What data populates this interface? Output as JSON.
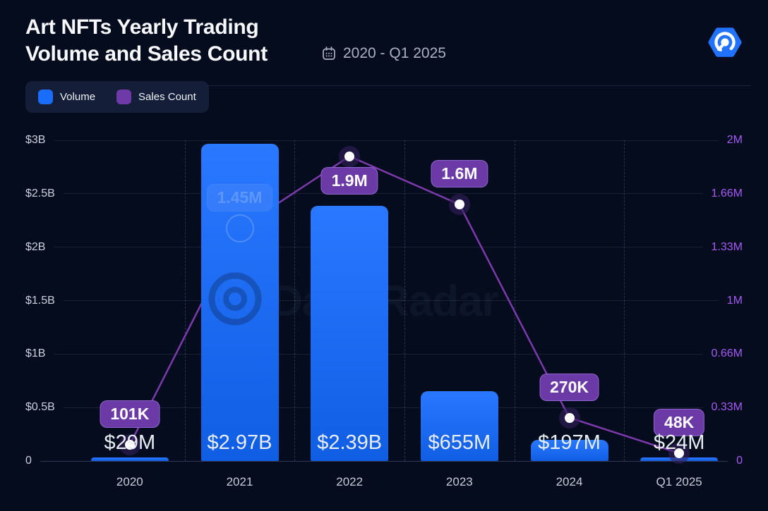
{
  "header": {
    "title_line1": "Art NFTs Yearly Trading",
    "title_line2": "Volume and Sales Count",
    "date_range": "2020 - Q1 2025"
  },
  "legend": {
    "items": [
      {
        "label": "Volume",
        "color": "#1a6dfb"
      },
      {
        "label": "Sales Count",
        "color": "#6d3aa8"
      }
    ]
  },
  "watermark": "DappRadar",
  "colors": {
    "background": "#050c1d",
    "bar_top": "#2a78ff",
    "bar_bottom": "#0f5ee4",
    "line": "#7c3aad",
    "right_axis_text": "#a55cf6",
    "badge_background": "#6b3aa6"
  },
  "chart_data": {
    "type": "bar+line combo",
    "title": "Art NFTs Yearly Trading Volume and Sales Count",
    "subtitle": "2020 - Q1 2025",
    "categories": [
      "2020",
      "2021",
      "2022",
      "2023",
      "2024",
      "Q1 2025"
    ],
    "series": [
      {
        "name": "Volume",
        "type": "bar",
        "axis": "left",
        "color": "#1a6dfb",
        "values": [
          29000000,
          2970000000,
          2390000000,
          655000000,
          197000000,
          24000000
        ],
        "labels": [
          "$29M",
          "$2.97B",
          "$2.39B",
          "$655M",
          "$197M",
          "$24M"
        ]
      },
      {
        "name": "Sales Count",
        "type": "line",
        "axis": "right",
        "color": "#7c3aad",
        "values": [
          101000,
          1450000,
          1900000,
          1600000,
          270000,
          48000
        ],
        "labels": [
          "101K",
          "1.45M",
          "1.9M",
          "1.6M",
          "270K",
          "48K"
        ]
      }
    ],
    "left_axis": {
      "max": 3000000000,
      "min": 0,
      "ticks": [
        "$3B",
        "$2.5B",
        "$2B",
        "$1.5B",
        "$1B",
        "$0.5B",
        "0"
      ]
    },
    "right_axis": {
      "max": 2000000,
      "min": 0,
      "ticks": [
        "2M",
        "1.66M",
        "1.33M",
        "1M",
        "0.66M",
        "0.33M",
        "0"
      ]
    },
    "grid": true,
    "legend_position": "top-left"
  }
}
